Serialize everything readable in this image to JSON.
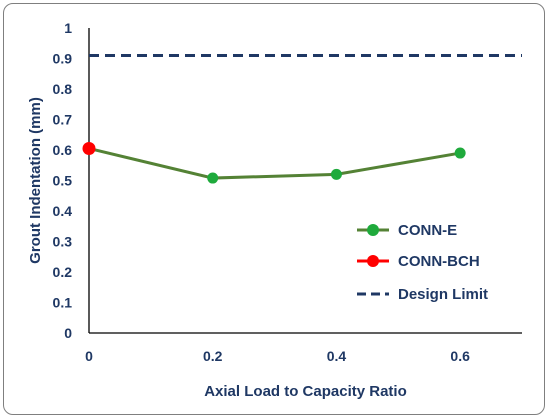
{
  "chart_data": {
    "type": "line",
    "xlabel": "Axial Load to Capacity Ratio",
    "ylabel": "Grout Indentation (mm)",
    "xlim": [
      0,
      0.7
    ],
    "ylim": [
      0,
      1
    ],
    "x_ticks": [
      "0",
      "0.2",
      "0.4",
      "0.6"
    ],
    "x_tick_values": [
      0,
      0.2,
      0.4,
      0.6
    ],
    "y_ticks": [
      "0",
      "0.1",
      "0.2",
      "0.3",
      "0.4",
      "0.5",
      "0.6",
      "0.7",
      "0.8",
      "0.9",
      "1"
    ],
    "y_tick_values": [
      0,
      0.1,
      0.2,
      0.3,
      0.4,
      0.5,
      0.6,
      0.7,
      0.8,
      0.9,
      1
    ],
    "grid": false,
    "legend_position": "right",
    "series": [
      {
        "name": "CONN-E",
        "kind": "line-marker",
        "color": "#548235",
        "marker_color": "#1faa3c",
        "x": [
          0,
          0.2,
          0.4,
          0.6
        ],
        "y": [
          0.605,
          0.508,
          0.52,
          0.59
        ]
      },
      {
        "name": "CONN-BCH",
        "kind": "marker",
        "color": "#ff0000",
        "marker_color": "#ff0000",
        "x": [
          0
        ],
        "y": [
          0.605
        ]
      },
      {
        "name": "Design Limit",
        "kind": "dashed-line",
        "color": "#1f3864",
        "x": [
          0,
          0.7
        ],
        "y": [
          0.91,
          0.91
        ]
      }
    ]
  }
}
